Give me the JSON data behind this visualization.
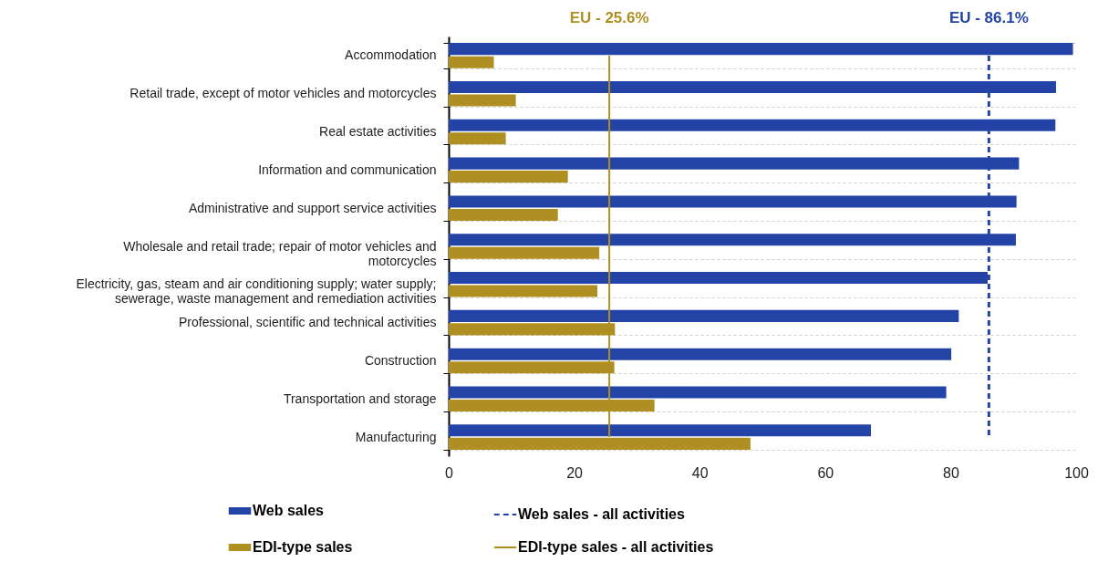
{
  "chart_data": {
    "type": "bar",
    "orientation": "horizontal",
    "categories": [
      "Accommodation",
      "Retail trade, except of motor vehicles and motorcycles",
      "Real estate activities",
      "Information and communication",
      "Administrative and support service activities",
      "Wholesale and retail trade; repair of motor vehicles and motorcycles",
      "Electricity, gas, steam and air conditioning supply; water supply; sewerage, waste management and remediation activities",
      "Professional, scientific and technical activities",
      "Construction",
      "Transportation and storage",
      "Manufacturing"
    ],
    "series": [
      {
        "name": "Web sales",
        "color": "#2443a6",
        "values": [
          99.5,
          96.8,
          96.7,
          90.9,
          90.5,
          90.4,
          85.9,
          81.3,
          80.1,
          79.3,
          67.3
        ]
      },
      {
        "name": "EDI-type sales",
        "color": "#b08f22",
        "values": [
          7.2,
          10.7,
          9.1,
          19.0,
          17.4,
          24.0,
          23.7,
          26.5,
          26.4,
          32.8,
          48.1
        ]
      },
      {
        "name": "Web sales - all activities",
        "type": "line",
        "line_style": "dashed",
        "color": "#2443a6",
        "values": [
          86.1,
          86.1,
          86.1,
          86.1,
          86.1,
          86.1,
          86.1,
          86.1,
          86.1,
          86.1,
          86.1
        ]
      },
      {
        "name": "EDI-type sales  - all activities",
        "type": "line",
        "line_style": "solid",
        "color": "#b08f22",
        "values": [
          25.6,
          25.6,
          25.6,
          25.6,
          25.6,
          25.6,
          25.6,
          25.6,
          25.6,
          25.6,
          25.6
        ]
      }
    ],
    "annotations": [
      "EU - 25.6%",
      "EU - 86.1%"
    ],
    "xlim": [
      0,
      100
    ],
    "xticks": [
      0,
      20,
      40,
      60,
      80,
      100
    ],
    "grid": "y",
    "legend": "bottom"
  }
}
